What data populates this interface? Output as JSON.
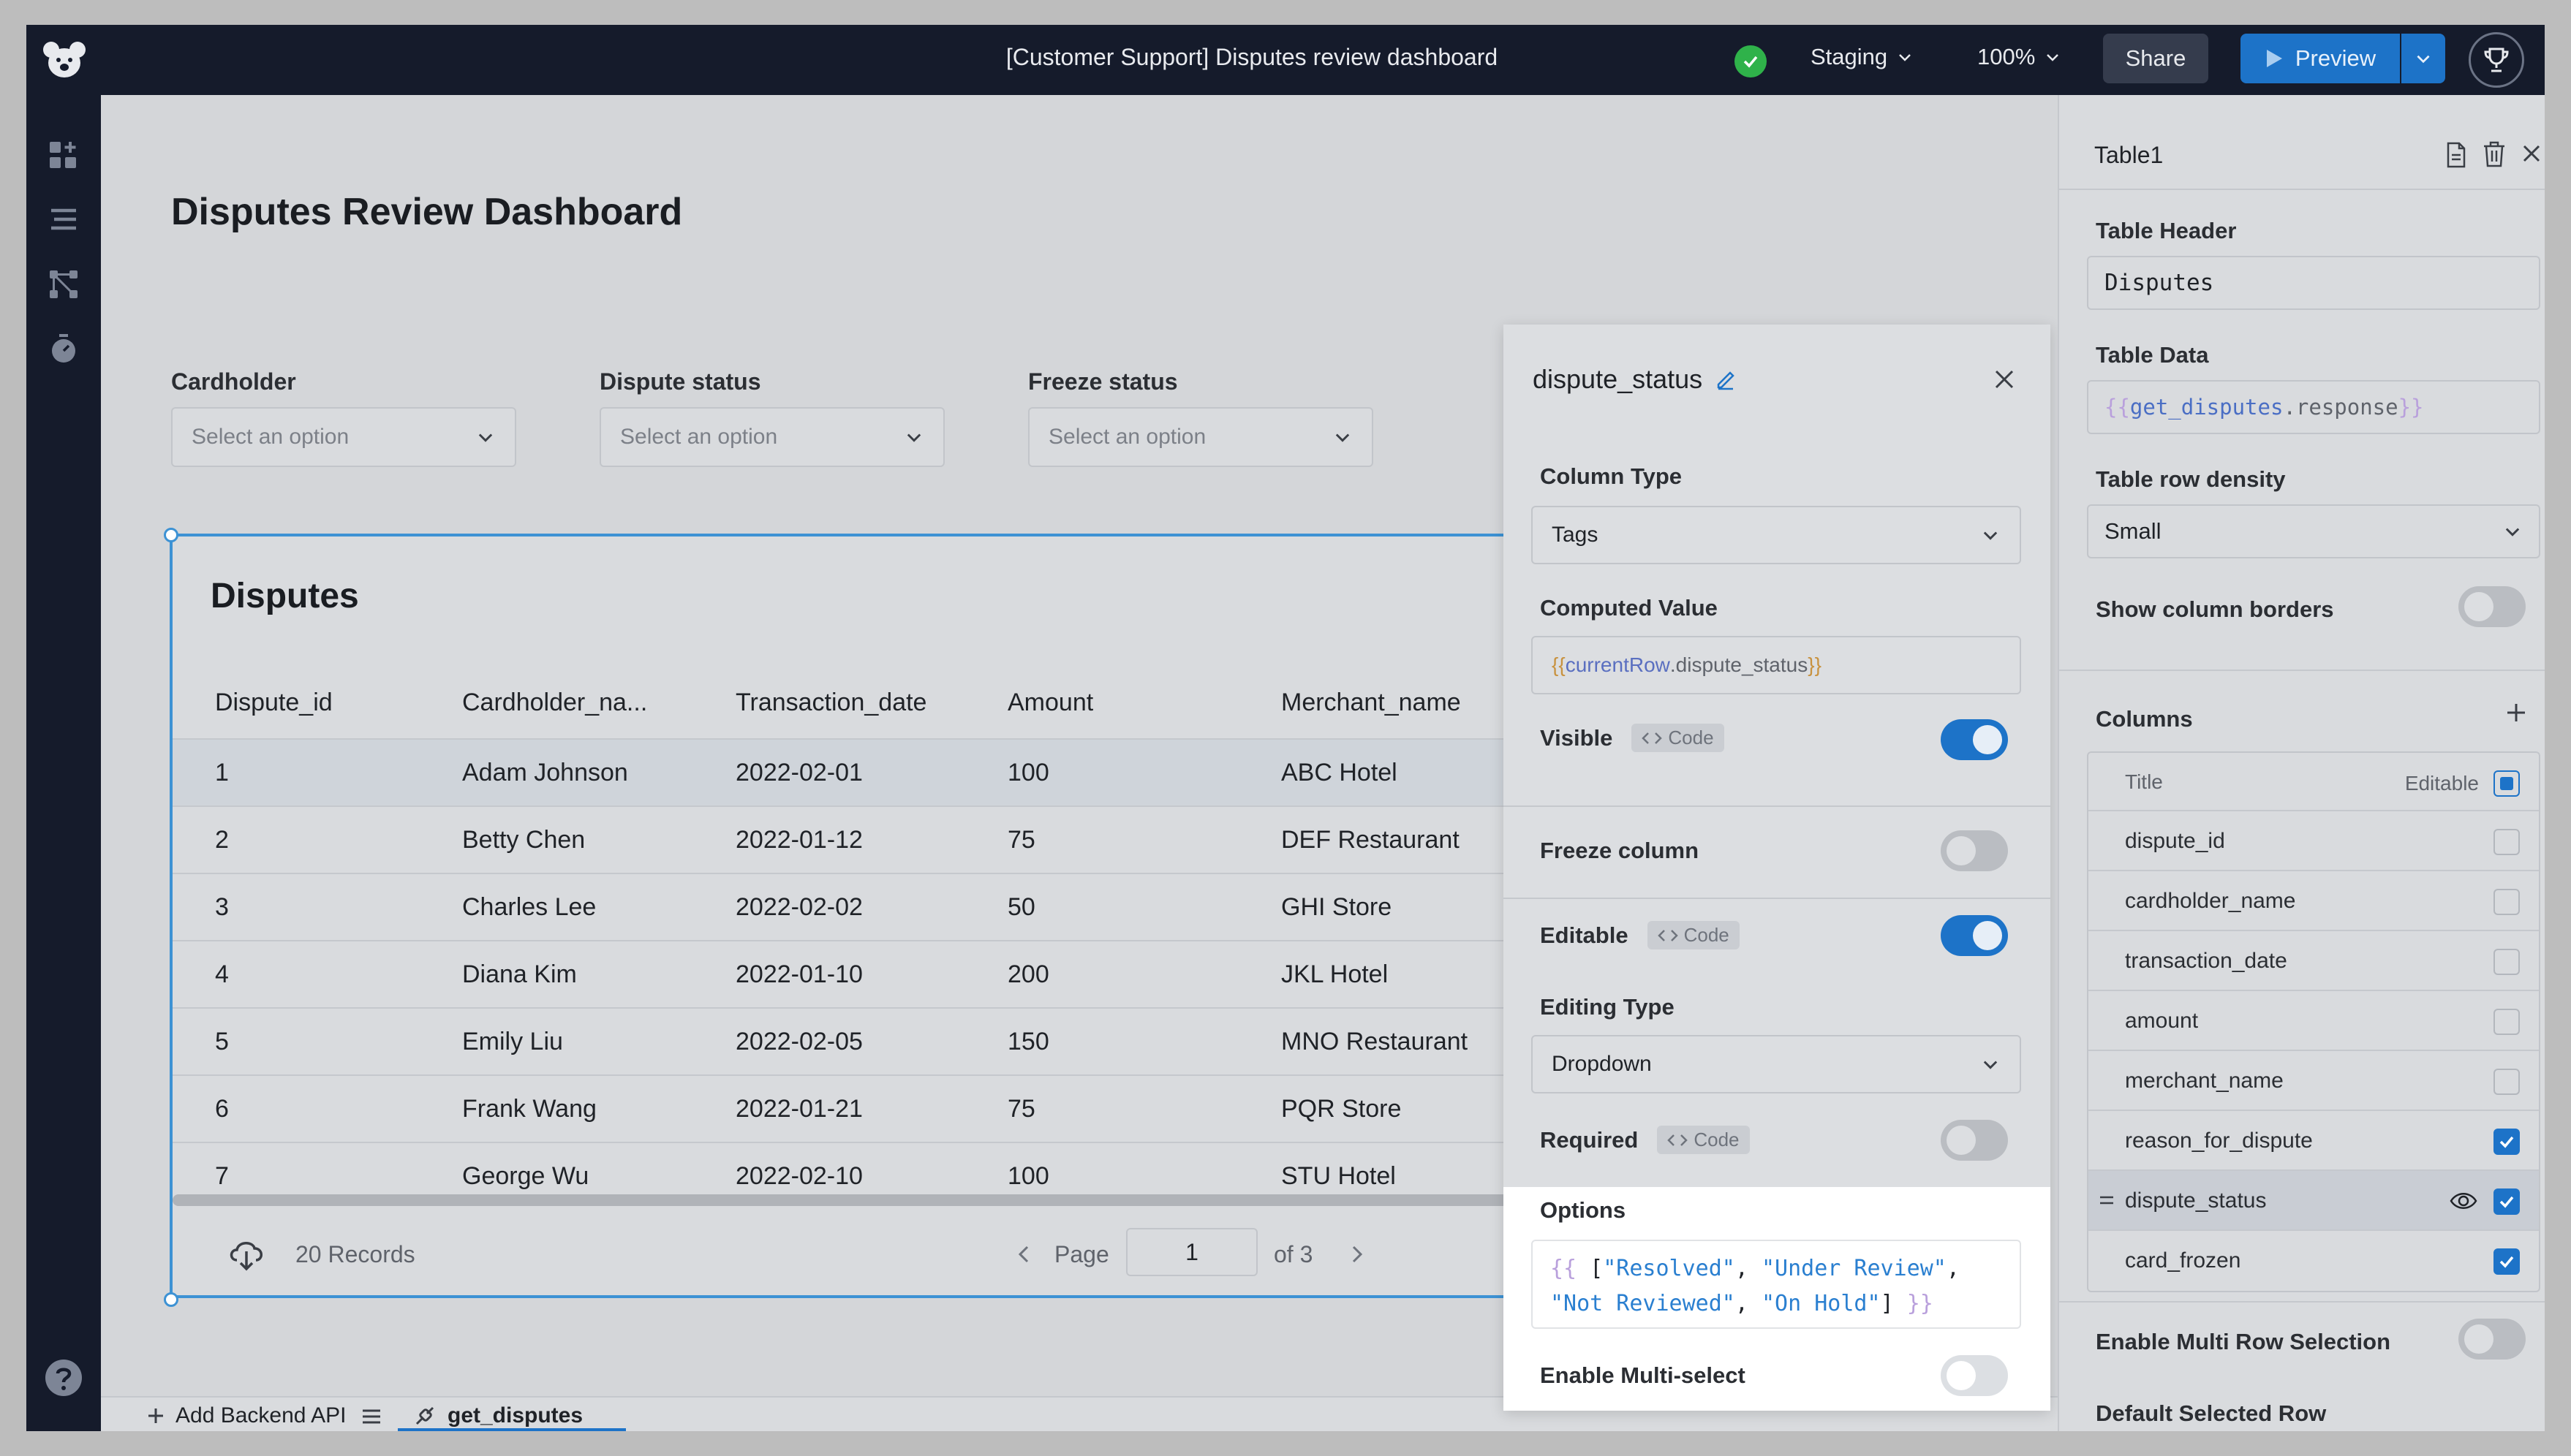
{
  "topbar": {
    "title": "[Customer Support] Disputes review dashboard",
    "environment": "Staging",
    "zoom": "100%",
    "share_label": "Share",
    "preview_label": "Preview",
    "status_color": "#2fb24a",
    "accent_color": "#1d73c8"
  },
  "page": {
    "title": "Disputes Review Dashboard",
    "filters": [
      {
        "label": "Cardholder",
        "placeholder": "Select an option"
      },
      {
        "label": "Dispute status",
        "placeholder": "Select an option"
      },
      {
        "label": "Freeze status",
        "placeholder": "Select an option"
      }
    ]
  },
  "table": {
    "title": "Disputes",
    "columns": [
      "Dispute_id",
      "Cardholder_na...",
      "Transaction_date",
      "Amount",
      "Merchant_name"
    ],
    "rows": [
      [
        "1",
        "Adam Johnson",
        "2022-02-01",
        "100",
        "ABC Hotel"
      ],
      [
        "2",
        "Betty Chen",
        "2022-01-12",
        "75",
        "DEF Restaurant"
      ],
      [
        "3",
        "Charles Lee",
        "2022-02-02",
        "50",
        "GHI Store"
      ],
      [
        "4",
        "Diana Kim",
        "2022-01-10",
        "200",
        "JKL Hotel"
      ],
      [
        "5",
        "Emily Liu",
        "2022-02-05",
        "150",
        "MNO Restaurant"
      ],
      [
        "6",
        "Frank Wang",
        "2022-01-21",
        "75",
        "PQR Store"
      ],
      [
        "7",
        "George Wu",
        "2022-02-10",
        "100",
        "STU Hotel"
      ]
    ],
    "records": "20 Records",
    "page_label": "Page",
    "page_value": "1",
    "page_total": "of 3"
  },
  "bottombar": {
    "add_api": "Add Backend API",
    "query": "get_disputes"
  },
  "column_panel": {
    "title": "dispute_status",
    "column_type_label": "Column Type",
    "column_type_value": "Tags",
    "computed_value_label": "Computed Value",
    "computed_value": {
      "open": "{{",
      "row": "currentRow",
      "field": ".dispute_status",
      "close": " }}"
    },
    "visible_label": "Visible",
    "code_label": "Code",
    "freeze_label": "Freeze column",
    "editable_label": "Editable",
    "editing_type_label": "Editing Type",
    "editing_type_value": "Dropdown",
    "required_label": "Required",
    "options_label": "Options",
    "options_code": {
      "open": "{{",
      "opt1": "\"Resolved\"",
      "opt2": "\"Under Review\"",
      "opt3": "\"Not Reviewed\"",
      "opt4": "\"On Hold\"",
      "close": "}}"
    },
    "multiselect_label": "Enable Multi-select",
    "toggles": {
      "visible": true,
      "freeze": false,
      "editable": true,
      "required": false,
      "multiselect": false
    }
  },
  "right_panel": {
    "component": "Table1",
    "header_label": "Table Header",
    "header_value": "Disputes",
    "data_label": "Table Data",
    "data_value": {
      "open": "{{",
      "name": "get_disputes",
      "rest": ".response",
      "close": "}}"
    },
    "density_label": "Table row density",
    "density_value": "Small",
    "borders_label": "Show column borders",
    "columns_label": "Columns",
    "list_title": "Title",
    "list_editable": "Editable",
    "columns": [
      {
        "name": "dispute_id",
        "editable": false
      },
      {
        "name": "cardholder_name",
        "editable": false
      },
      {
        "name": "transaction_date",
        "editable": false
      },
      {
        "name": "amount",
        "editable": false
      },
      {
        "name": "merchant_name",
        "editable": false
      },
      {
        "name": "reason_for_dispute",
        "editable": true
      },
      {
        "name": "dispute_status",
        "editable": true
      },
      {
        "name": "card_frozen",
        "editable": true
      }
    ],
    "multi_row_label": "Enable Multi Row Selection",
    "default_row_label": "Default Selected Row"
  }
}
